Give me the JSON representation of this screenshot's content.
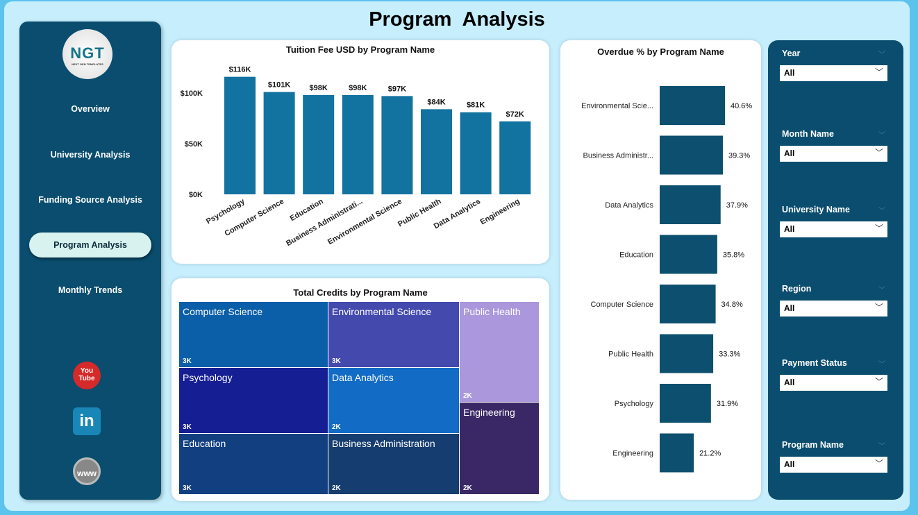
{
  "title": "Program  Analysis",
  "logo": {
    "text": "NGT",
    "subtext": "NEXT GEN TEMPLATES"
  },
  "nav": [
    {
      "label": "Overview"
    },
    {
      "label": "University Analysis"
    },
    {
      "label": "Funding Source Analysis"
    },
    {
      "label": "Program Analysis",
      "active": true
    },
    {
      "label": "Monthly Trends"
    }
  ],
  "social": [
    {
      "icon": "youtube-icon",
      "label": "You Tube"
    },
    {
      "icon": "linkedin-icon",
      "label": "in"
    },
    {
      "icon": "globe-icon",
      "label": "www"
    }
  ],
  "colors": {
    "bar": "#1272a0",
    "hbar": "#0c4f6e",
    "sidebar": "#0a4d6e",
    "background": "#c6eefc"
  },
  "chart_data": [
    {
      "type": "bar",
      "title": "Tuition Fee USD by Program Name",
      "categories": [
        "Psychology",
        "Computer Science",
        "Education",
        "Business Administrati...",
        "Environmental Science",
        "Public Health",
        "Data Analytics",
        "Engineering"
      ],
      "values": [
        116,
        101,
        98,
        98,
        97,
        84,
        81,
        72
      ],
      "data_labels": [
        "$116K",
        "$101K",
        "$98K",
        "$98K",
        "$97K",
        "$84K",
        "$81K",
        "$72K"
      ],
      "yticks": [
        "$0K",
        "$50K",
        "$100K"
      ],
      "ylim": [
        0,
        116
      ],
      "unit": "K USD",
      "grid": false
    },
    {
      "type": "bar",
      "orientation": "horizontal",
      "title": "Overdue % by Program Name",
      "categories": [
        "Environmental Scie...",
        "Business Administr...",
        "Data Analytics",
        "Education",
        "Computer Science",
        "Public Health",
        "Psychology",
        "Engineering"
      ],
      "values": [
        40.6,
        39.3,
        37.9,
        35.8,
        34.8,
        33.3,
        31.9,
        21.2
      ],
      "data_labels": [
        "40.6%",
        "39.3%",
        "37.9%",
        "35.8%",
        "34.8%",
        "33.3%",
        "31.9%",
        "21.2%"
      ]
    },
    {
      "type": "treemap",
      "title": "Total Credits by Program Name",
      "items": [
        {
          "name": "Computer Science",
          "label": "3K",
          "color": "#0b5ea8"
        },
        {
          "name": "Environmental Science",
          "label": "3K",
          "color": "#4449ae"
        },
        {
          "name": "Public Health",
          "label": "2K",
          "color": "#aa97dc"
        },
        {
          "name": "Psychology",
          "label": "3K",
          "color": "#161e93"
        },
        {
          "name": "Data Analytics",
          "label": "2K",
          "color": "#126bc4"
        },
        {
          "name": "Engineering",
          "label": "2K",
          "color": "#3a2866"
        },
        {
          "name": "Education",
          "label": "3K",
          "color": "#123f80"
        },
        {
          "name": "Business Administration",
          "label": "2K",
          "color": "#163d6f"
        }
      ]
    }
  ],
  "filters": [
    {
      "label": "Year",
      "value": "All"
    },
    {
      "label": "Month Name",
      "value": "All"
    },
    {
      "label": "University Name",
      "value": "All"
    },
    {
      "label": "Region",
      "value": "All"
    },
    {
      "label": "Payment Status",
      "value": "All"
    },
    {
      "label": "Program Name",
      "value": "All"
    }
  ]
}
